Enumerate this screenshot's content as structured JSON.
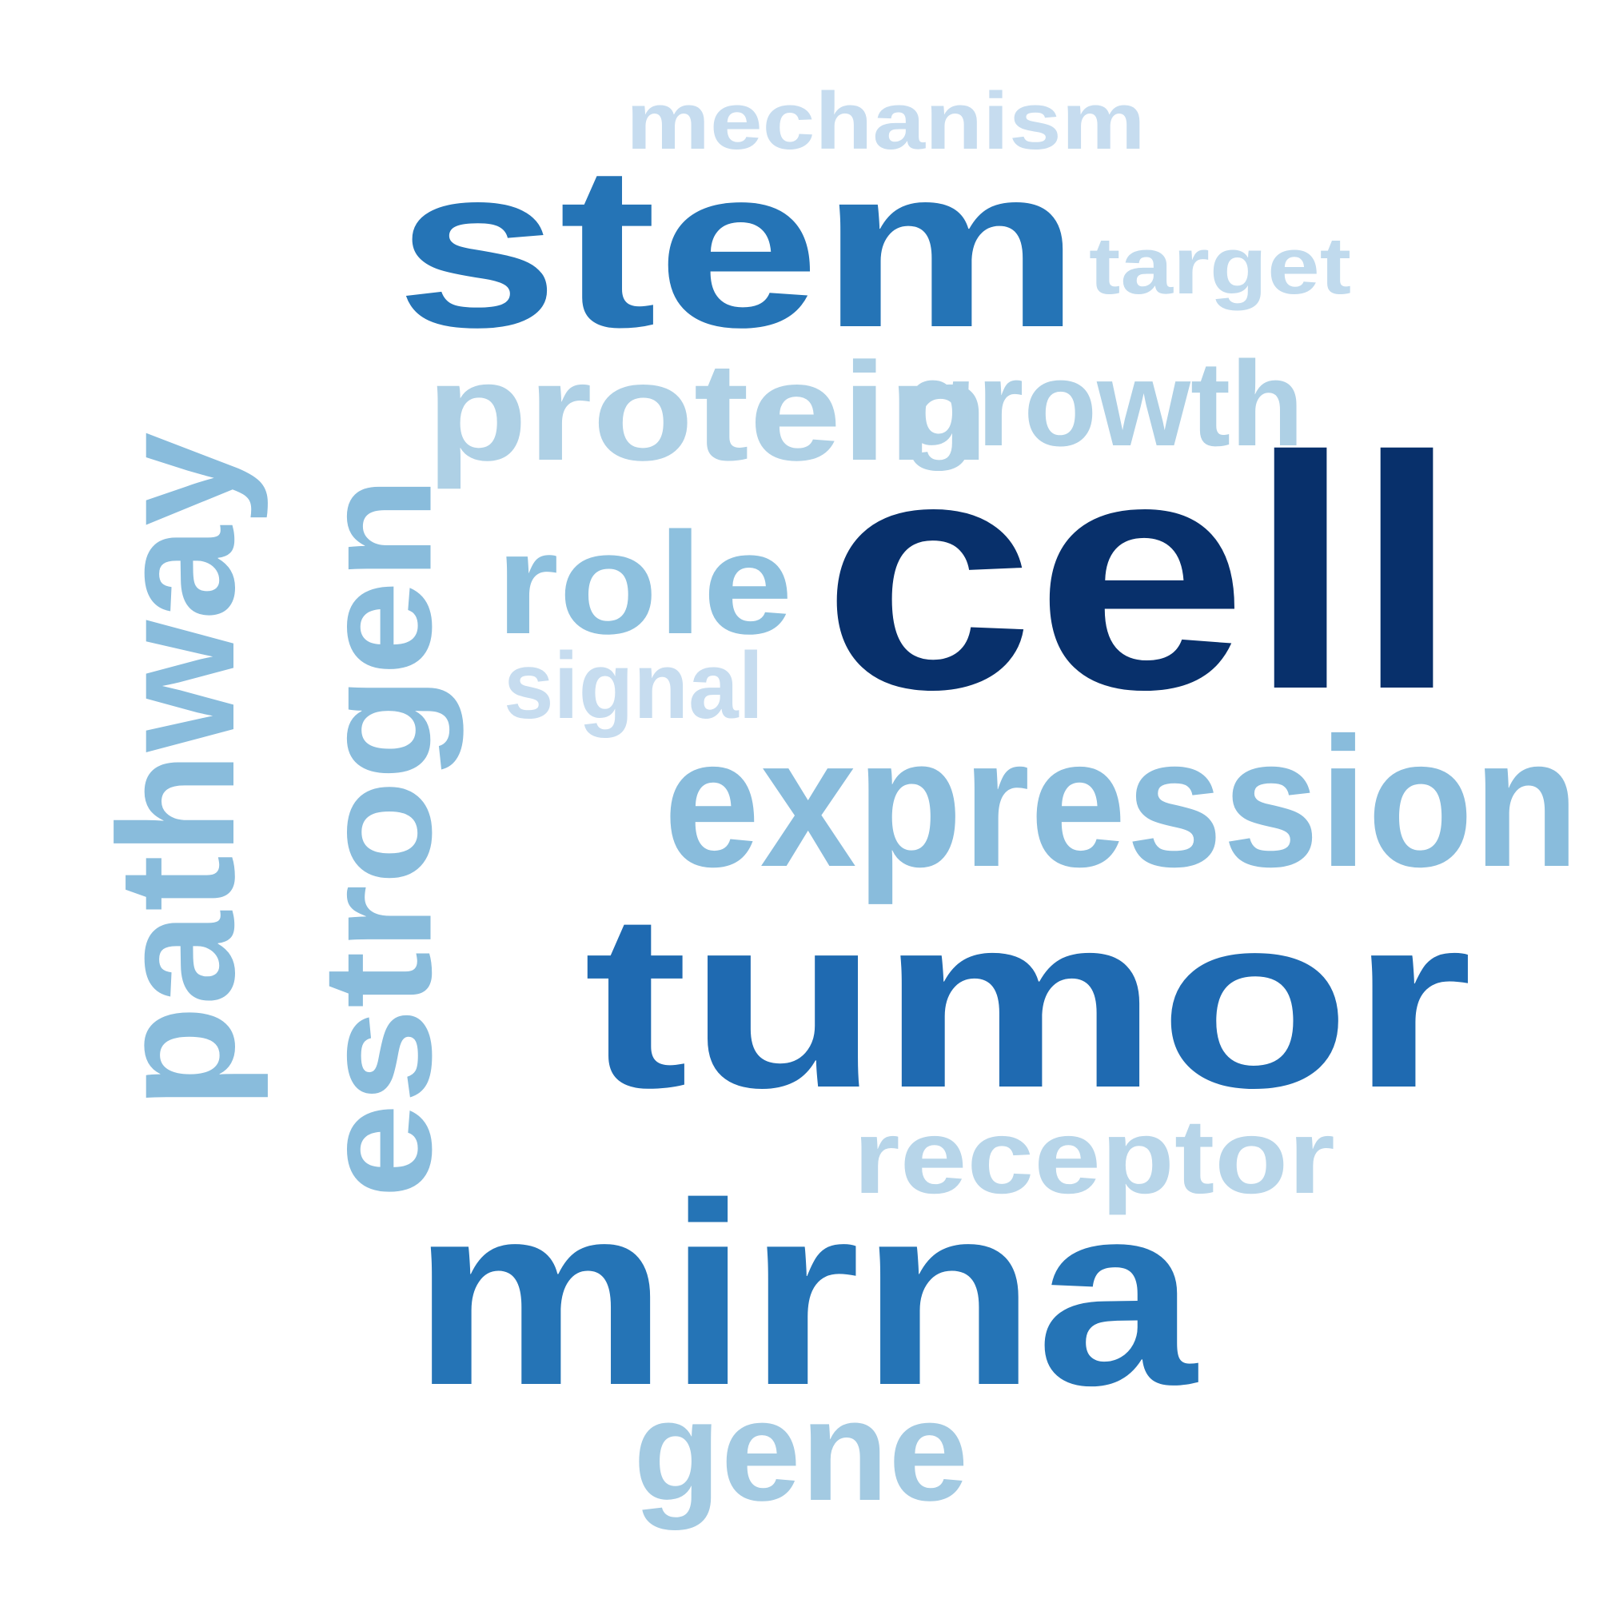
{
  "words": [
    {
      "key": "cell",
      "text": "cell",
      "color": "#08306b",
      "orientation": "horizontal"
    },
    {
      "key": "tumor",
      "text": "tumor",
      "color": "#1f6ab1",
      "orientation": "horizontal"
    },
    {
      "key": "stem",
      "text": "stem",
      "color": "#2574b6",
      "orientation": "horizontal"
    },
    {
      "key": "mirna",
      "text": "mirna",
      "color": "#2574b6",
      "orientation": "horizontal"
    },
    {
      "key": "expression",
      "text": "expression",
      "color": "#89bcdc",
      "orientation": "horizontal"
    },
    {
      "key": "pathway",
      "text": "pathway",
      "color": "#89bcdc",
      "orientation": "vertical"
    },
    {
      "key": "estrogen",
      "text": "estrogen",
      "color": "#89bcdc",
      "orientation": "vertical"
    },
    {
      "key": "role",
      "text": "role",
      "color": "#8dc0de",
      "orientation": "horizontal"
    },
    {
      "key": "protein",
      "text": "protein",
      "color": "#aed0e5",
      "orientation": "horizontal"
    },
    {
      "key": "growth",
      "text": "growth",
      "color": "#aed0e5",
      "orientation": "horizontal"
    },
    {
      "key": "gene",
      "text": "gene",
      "color": "#a3cae2",
      "orientation": "horizontal"
    },
    {
      "key": "receptor",
      "text": "receptor",
      "color": "#b7d5e9",
      "orientation": "horizontal"
    },
    {
      "key": "target",
      "text": "target",
      "color": "#c0daed",
      "orientation": "horizontal"
    },
    {
      "key": "mechanism",
      "text": "mechanism",
      "color": "#c6dcef",
      "orientation": "horizontal"
    },
    {
      "key": "signal",
      "text": "signal",
      "color": "#c6dcef",
      "orientation": "horizontal"
    }
  ]
}
